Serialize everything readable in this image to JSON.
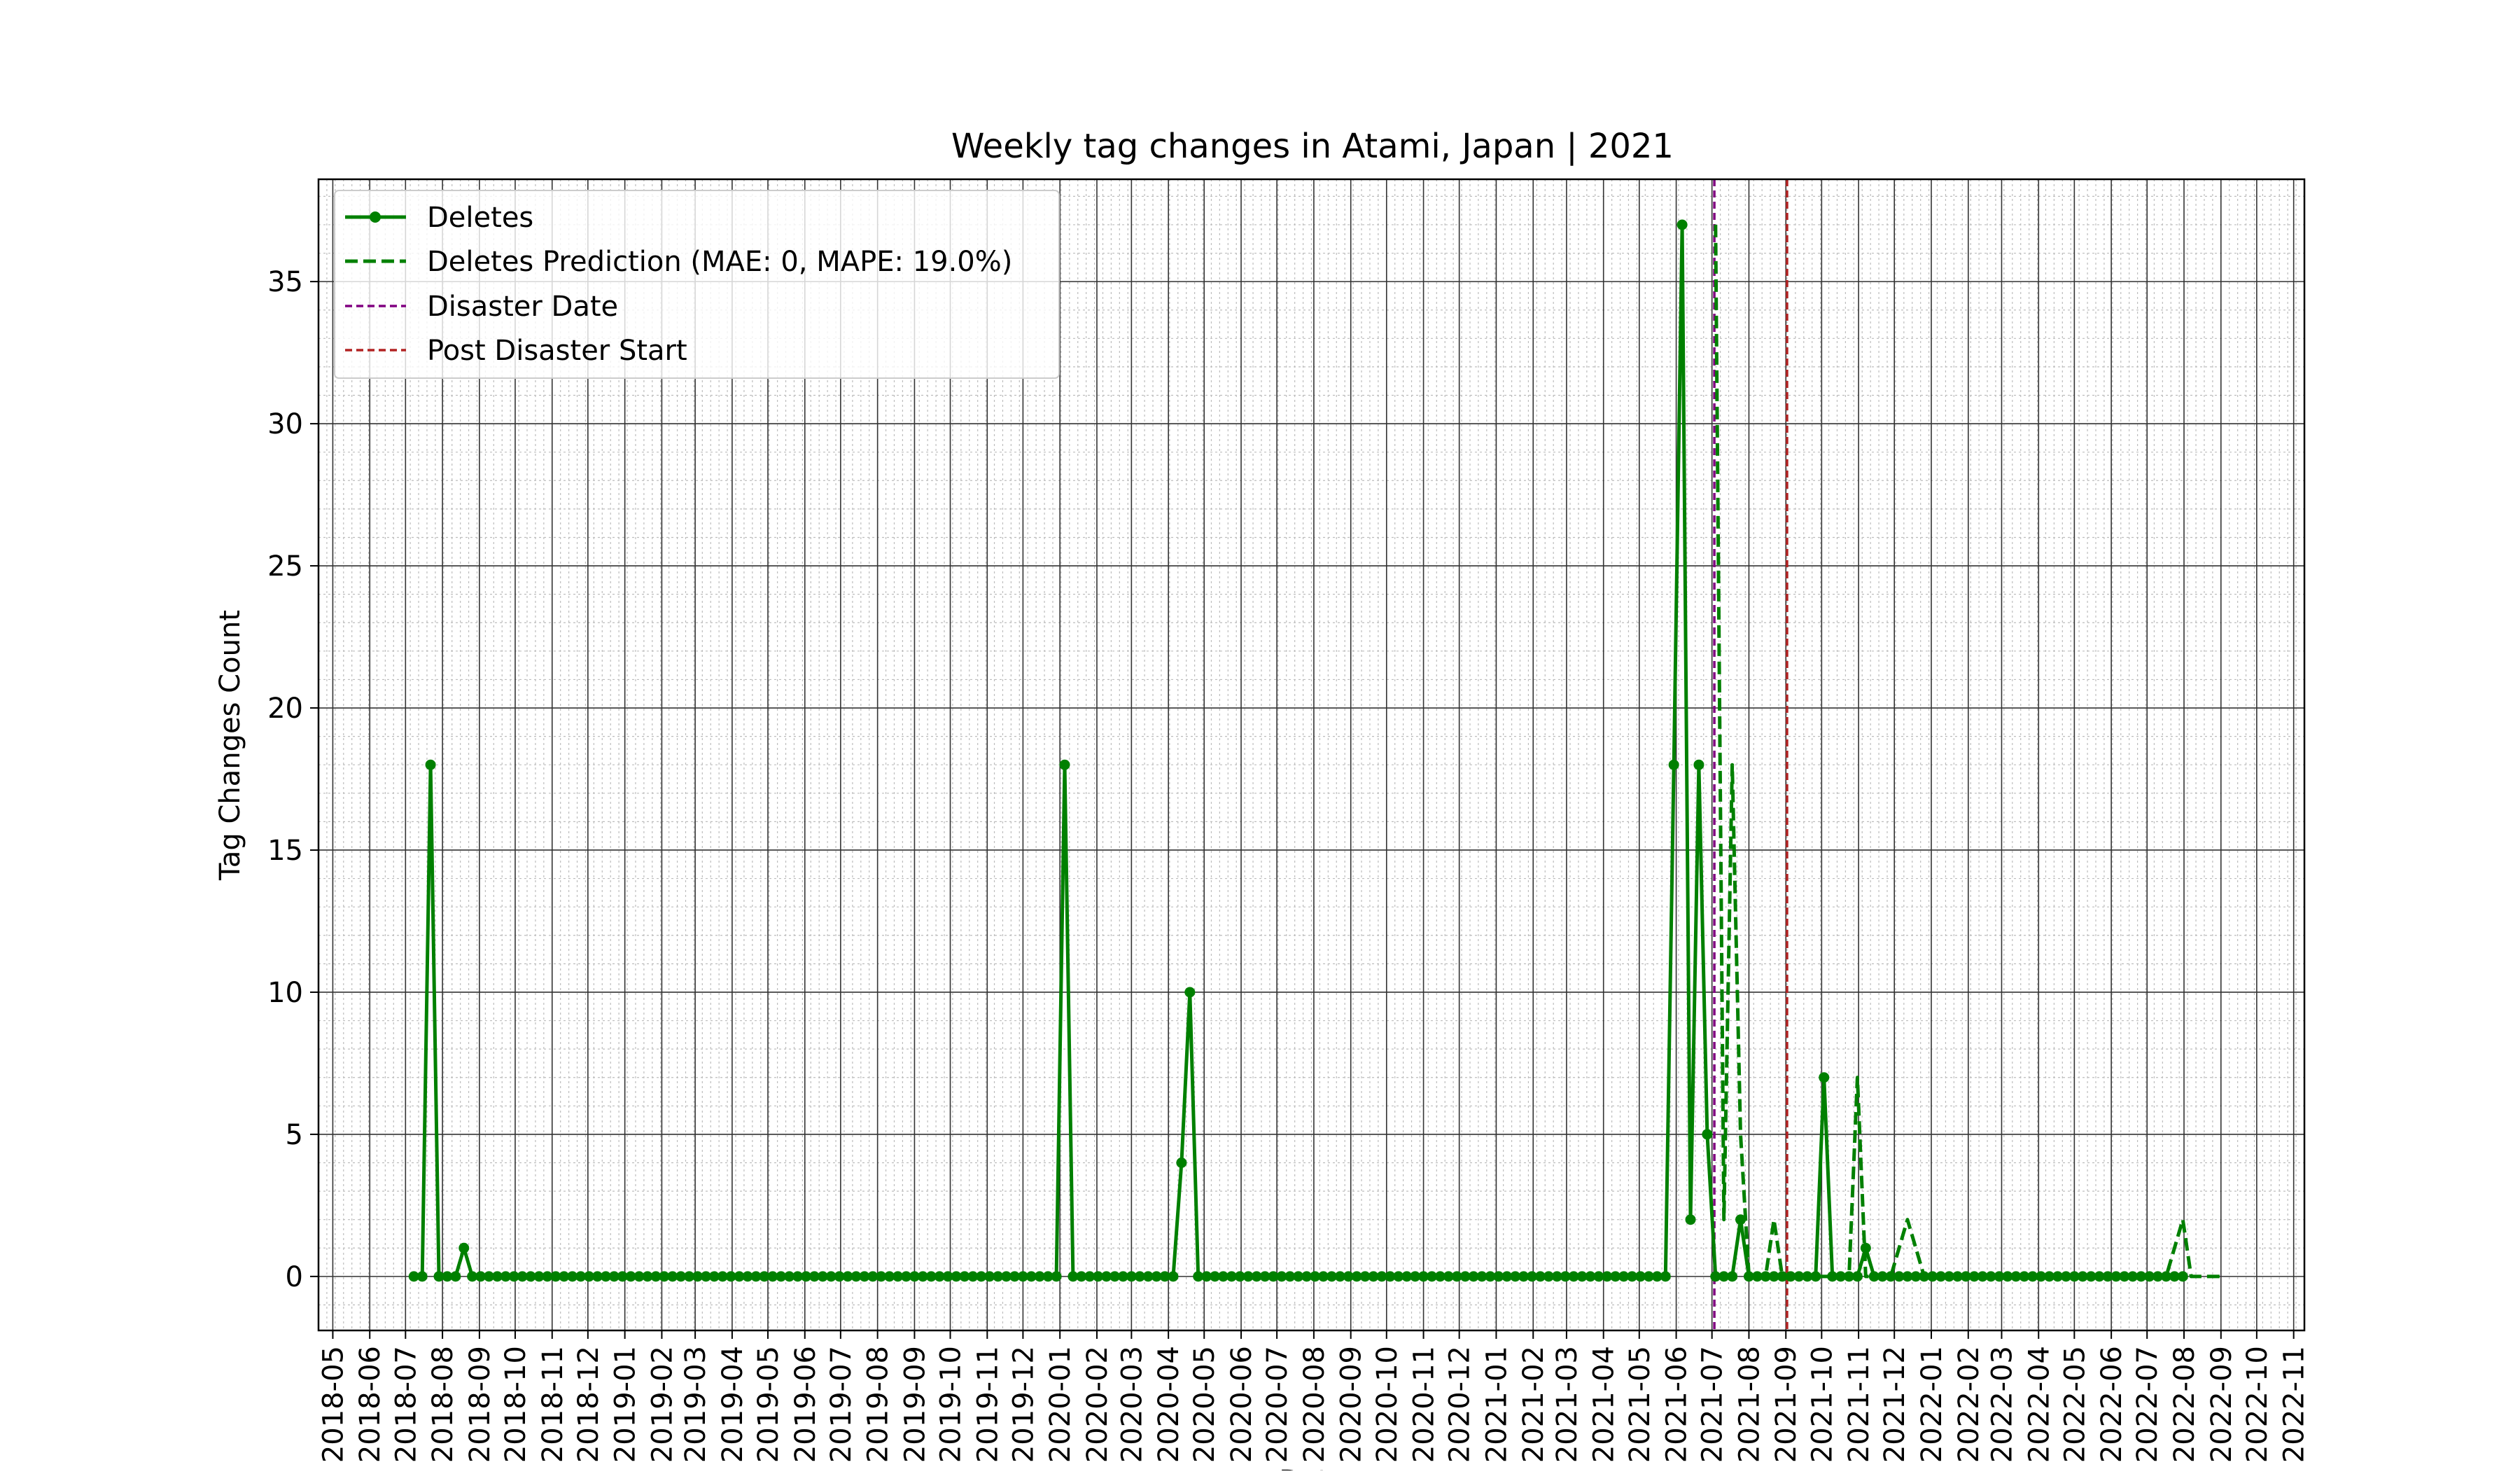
{
  "chart_data": {
    "type": "line",
    "title": "Weekly tag changes in Atami, Japan | 2021",
    "xlabel": "Date",
    "ylabel": "Tag Changes Count",
    "ylim": [
      -1.9,
      38.6
    ],
    "y_ticks": [
      0,
      5,
      10,
      15,
      20,
      25,
      30,
      35
    ],
    "y_tick_labels": [
      "0",
      "5",
      "10",
      "15",
      "20",
      "25",
      "30",
      "35"
    ],
    "x_tick_labels": [
      "2018-05",
      "2018-06",
      "2018-07",
      "2018-08",
      "2018-09",
      "2018-10",
      "2018-11",
      "2018-12",
      "2019-01",
      "2019-02",
      "2019-03",
      "2019-04",
      "2019-05",
      "2019-06",
      "2019-07",
      "2019-08",
      "2019-09",
      "2019-10",
      "2019-11",
      "2019-12",
      "2020-01",
      "2020-02",
      "2020-03",
      "2020-04",
      "2020-05",
      "2020-06",
      "2020-07",
      "2020-08",
      "2020-09",
      "2020-10",
      "2020-11",
      "2020-12",
      "2021-01",
      "2021-02",
      "2021-03",
      "2021-04",
      "2021-05",
      "2021-06",
      "2021-07",
      "2021-08",
      "2021-09",
      "2021-10",
      "2021-11",
      "2021-12",
      "2022-01",
      "2022-02",
      "2022-03",
      "2022-04",
      "2022-05",
      "2022-06",
      "2022-07",
      "2022-08",
      "2022-09",
      "2022-10",
      "2022-11"
    ],
    "grid": true,
    "legend_position": "top-left",
    "legend": [
      "Deletes",
      "Deletes Prediction (MAE: 0, MAPE: 19.0%)",
      "Disaster Date",
      "Post Disaster Start"
    ],
    "x_start": "2018-07-08",
    "week_days": 7,
    "series": [
      {
        "name": "Deletes",
        "style": "solid-marker",
        "color": "#008000",
        "start_date": "2018-07-08",
        "values": [
          0,
          0,
          18,
          0,
          0,
          0,
          1,
          0,
          0,
          0,
          0,
          0,
          0,
          0,
          0,
          0,
          0,
          0,
          0,
          0,
          0,
          0,
          0,
          0,
          0,
          0,
          0,
          0,
          0,
          0,
          0,
          0,
          0,
          0,
          0,
          0,
          0,
          0,
          0,
          0,
          0,
          0,
          0,
          0,
          0,
          0,
          0,
          0,
          0,
          0,
          0,
          0,
          0,
          0,
          0,
          0,
          0,
          0,
          0,
          0,
          0,
          0,
          0,
          0,
          0,
          0,
          0,
          0,
          0,
          0,
          0,
          0,
          0,
          0,
          0,
          0,
          0,
          0,
          18,
          0,
          0,
          0,
          0,
          0,
          0,
          0,
          0,
          0,
          0,
          0,
          0,
          0,
          4,
          10,
          0,
          0,
          0,
          0,
          0,
          0,
          0,
          0,
          0,
          0,
          0,
          0,
          0,
          0,
          0,
          0,
          0,
          0,
          0,
          0,
          0,
          0,
          0,
          0,
          0,
          0,
          0,
          0,
          0,
          0,
          0,
          0,
          0,
          0,
          0,
          0,
          0,
          0,
          0,
          0,
          0,
          0,
          0,
          0,
          0,
          0,
          0,
          0,
          0,
          0,
          0,
          0,
          0,
          0,
          0,
          0,
          0,
          18,
          37,
          2,
          18,
          5,
          0,
          0,
          0,
          2,
          0,
          0,
          0,
          0,
          0,
          0,
          0,
          0,
          0,
          7,
          0,
          0,
          0,
          0,
          1,
          0,
          0,
          0,
          0,
          0,
          0,
          0,
          0,
          0,
          0,
          0,
          0,
          0,
          0,
          0,
          0,
          0,
          0,
          0,
          0,
          0,
          0,
          0,
          0,
          0,
          0,
          0,
          0,
          0,
          0,
          0,
          0,
          0,
          0,
          0,
          0,
          0,
          0
        ]
      },
      {
        "name": "Deletes Prediction (MAE: 0, MAPE: 19.0%)",
        "style": "dashed",
        "color": "#008000",
        "start_date": "2021-07-04",
        "values": [
          37,
          2,
          18,
          5,
          0,
          0,
          0,
          2,
          0,
          0,
          0,
          0,
          0,
          0,
          0,
          0,
          0,
          7,
          0,
          0,
          0,
          0,
          1,
          2,
          1,
          0,
          0,
          0,
          0,
          0,
          0,
          0,
          0,
          0,
          0,
          0,
          0,
          0,
          0,
          0,
          0,
          0,
          0,
          0,
          0,
          0,
          0,
          0,
          0,
          0,
          0,
          0,
          0,
          0,
          0,
          1,
          2,
          0,
          0,
          0,
          0,
          0
        ]
      }
    ],
    "vlines": [
      {
        "name": "Disaster Date",
        "date": "2021-07-03",
        "color": "#800080"
      },
      {
        "name": "Post Disaster Start",
        "date": "2021-09-02",
        "color": "#b22222"
      }
    ]
  }
}
